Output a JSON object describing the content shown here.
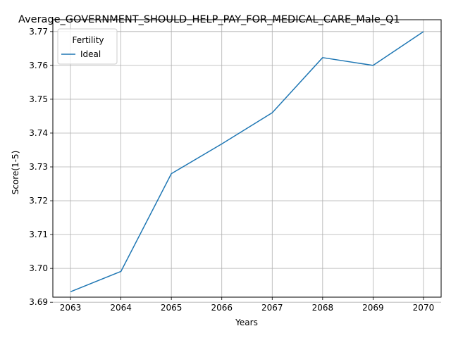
{
  "chart_data": {
    "type": "line",
    "title": "Average_GOVERNMENT_SHOULD_HELP_PAY_FOR_MEDICAL_CARE_Male_Q1",
    "xlabel": "Years",
    "ylabel": "Score(1-5)",
    "x": [
      2063,
      2064,
      2065,
      2066,
      2067,
      2068,
      2069,
      2070
    ],
    "series": [
      {
        "name": "Ideal",
        "color": "#1f77b4",
        "values": [
          3.6931,
          3.6991,
          3.728,
          3.7368,
          3.746,
          3.7623,
          3.76,
          3.77
        ]
      }
    ],
    "xlim": [
      2062.65,
      2070.35
    ],
    "ylim": [
      3.6915,
      3.7735
    ],
    "xticks": [
      "2063",
      "2064",
      "2065",
      "2066",
      "2067",
      "2068",
      "2069",
      "2070"
    ],
    "yticks": [
      "3.69",
      "3.70",
      "3.71",
      "3.72",
      "3.73",
      "3.74",
      "3.75",
      "3.76",
      "3.77"
    ],
    "grid": true,
    "legend": {
      "title": "Fertility",
      "position": "top-left"
    }
  }
}
